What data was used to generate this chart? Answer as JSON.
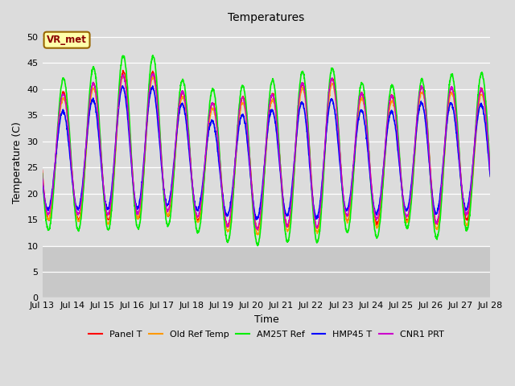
{
  "title": "Temperatures",
  "xlabel": "Time",
  "ylabel": "Temperature (C)",
  "ylim": [
    0,
    52
  ],
  "yticks": [
    0,
    5,
    10,
    15,
    20,
    25,
    30,
    35,
    40,
    45,
    50
  ],
  "background_color": "#dcdcdc",
  "plot_bg_color": "#dcdcdc",
  "lower_band_ymax": 10,
  "annotation_text": "VR_met",
  "annotation_box_color": "#ffffaa",
  "annotation_box_edge": "#996600",
  "series": [
    {
      "label": "Panel T",
      "color": "#ff0000",
      "lw": 1.0
    },
    {
      "label": "Old Ref Temp",
      "color": "#ff9900",
      "lw": 1.0
    },
    {
      "label": "AM25T Ref",
      "color": "#00ee00",
      "lw": 1.2
    },
    {
      "label": "HMP45 T",
      "color": "#0000ff",
      "lw": 1.2
    },
    {
      "label": "CNR1 PRT",
      "color": "#cc00cc",
      "lw": 1.0
    }
  ],
  "x_start": 13.0,
  "x_end": 28.0,
  "x_tick_positions": [
    13,
    14,
    15,
    16,
    17,
    18,
    19,
    20,
    21,
    22,
    23,
    24,
    25,
    26,
    27,
    28
  ],
  "x_tick_labels": [
    "Jul 13",
    "Jul 14",
    "Jul 15",
    "Jul 16",
    "Jul 17",
    "Jul 18",
    "Jul 19",
    "Jul 20",
    "Jul 21",
    "Jul 22",
    "Jul 23",
    "Jul 24",
    "Jul 25",
    "Jul 26",
    "Jul 27",
    "Jul 28"
  ],
  "grid_color": "#ffffff",
  "font_name": "DejaVu Sans"
}
